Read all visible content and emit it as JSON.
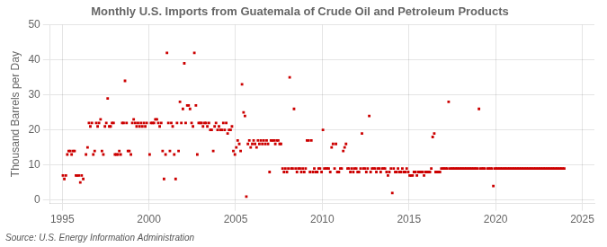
{
  "chart_data": {
    "type": "scatter",
    "title": "Monthly U.S. Imports from Guatemala of Crude Oil and Petroleum Products",
    "ylabel": "Thousand Barrels per Day",
    "annotations": [
      "Source: U.S. Energy Information Administration"
    ],
    "color": "#CC0000",
    "marker": "square",
    "grid": true,
    "xlim": [
      1994.3,
      2025.7
    ],
    "ylim": [
      -1,
      50
    ],
    "xticks": [
      1995,
      2000,
      2005,
      2010,
      2015,
      2020,
      2025
    ],
    "yticks": [
      0,
      10,
      20,
      30,
      40,
      50
    ],
    "x": [
      1995.04,
      1995.12,
      1995.21,
      1995.29,
      1995.37,
      1995.46,
      1995.54,
      1995.62,
      1995.71,
      1995.79,
      1995.87,
      1995.96,
      1996.04,
      1996.12,
      1996.21,
      1996.37,
      1996.46,
      1996.54,
      1996.62,
      1996.71,
      1996.79,
      1996.87,
      1996.96,
      1997.04,
      1997.12,
      1997.21,
      1997.29,
      1997.37,
      1997.46,
      1997.54,
      1997.62,
      1997.71,
      1997.79,
      1997.87,
      1997.96,
      1998.04,
      1998.12,
      1998.21,
      1998.29,
      1998.37,
      1998.46,
      1998.54,
      1998.62,
      1998.71,
      1998.79,
      1998.87,
      1998.96,
      1999.04,
      1999.12,
      1999.21,
      1999.29,
      1999.37,
      1999.46,
      1999.54,
      1999.62,
      1999.71,
      1999.79,
      1999.87,
      2000.04,
      2000.12,
      2000.21,
      2000.29,
      2000.37,
      2000.46,
      2000.54,
      2000.62,
      2000.71,
      2000.79,
      2000.87,
      2000.96,
      2001.04,
      2001.12,
      2001.21,
      2001.29,
      2001.37,
      2001.46,
      2001.54,
      2001.62,
      2001.71,
      2001.79,
      2001.87,
      2001.96,
      2002.04,
      2002.12,
      2002.21,
      2002.29,
      2002.37,
      2002.46,
      2002.54,
      2002.62,
      2002.71,
      2002.79,
      2002.87,
      2002.96,
      2003.04,
      2003.12,
      2003.21,
      2003.29,
      2003.37,
      2003.46,
      2003.54,
      2003.62,
      2003.71,
      2003.79,
      2003.87,
      2003.96,
      2004.04,
      2004.12,
      2004.21,
      2004.29,
      2004.37,
      2004.46,
      2004.54,
      2004.62,
      2004.71,
      2004.79,
      2004.87,
      2004.96,
      2005.04,
      2005.12,
      2005.21,
      2005.29,
      2005.37,
      2005.46,
      2005.54,
      2005.62,
      2005.71,
      2005.79,
      2005.87,
      2005.96,
      2006.04,
      2006.12,
      2006.21,
      2006.29,
      2006.37,
      2006.46,
      2006.54,
      2006.62,
      2006.71,
      2006.79,
      2006.87,
      2006.96,
      2007.04,
      2007.12,
      2007.21,
      2007.29,
      2007.37,
      2007.46,
      2007.54,
      2007.62,
      2007.71,
      2007.79,
      2007.87,
      2007.96,
      2008.04,
      2008.12,
      2008.21,
      2008.29,
      2008.37,
      2008.46,
      2008.54,
      2008.62,
      2008.71,
      2008.79,
      2008.87,
      2008.96,
      2009.04,
      2009.12,
      2009.21,
      2009.29,
      2009.37,
      2009.46,
      2009.54,
      2009.62,
      2009.71,
      2009.79,
      2009.87,
      2009.96,
      2010.04,
      2010.12,
      2010.21,
      2010.29,
      2010.37,
      2010.46,
      2010.54,
      2010.62,
      2010.71,
      2010.79,
      2010.87,
      2010.96,
      2011.04,
      2011.12,
      2011.21,
      2011.29,
      2011.37,
      2011.46,
      2011.54,
      2011.62,
      2011.71,
      2011.79,
      2011.87,
      2011.96,
      2012.04,
      2012.12,
      2012.21,
      2012.29,
      2012.37,
      2012.46,
      2012.54,
      2012.62,
      2012.71,
      2012.79,
      2012.87,
      2012.96,
      2013.04,
      2013.12,
      2013.21,
      2013.29,
      2013.37,
      2013.46,
      2013.54,
      2013.62,
      2013.71,
      2013.79,
      2013.87,
      2013.96,
      2014.04,
      2014.12,
      2014.21,
      2014.29,
      2014.37,
      2014.46,
      2014.54,
      2014.62,
      2014.71,
      2014.79,
      2014.87,
      2014.96,
      2015.04,
      2015.12,
      2015.21,
      2015.29,
      2015.37,
      2015.46,
      2015.54,
      2015.62,
      2015.71,
      2015.79,
      2015.87,
      2015.96,
      2016.04,
      2016.12,
      2016.21,
      2016.29,
      2016.37,
      2016.46,
      2016.54,
      2016.62,
      2016.71,
      2016.79,
      2016.87,
      2016.96,
      2017.04,
      2017.12,
      2017.21,
      2017.29,
      2017.37,
      2017.46,
      2017.54,
      2017.62,
      2017.71,
      2017.79,
      2017.87,
      2017.96,
      2018.04,
      2018.12,
      2018.21,
      2018.29,
      2018.37,
      2018.46,
      2018.54,
      2018.62,
      2018.71,
      2018.79,
      2018.87,
      2018.96,
      2019.04,
      2019.12,
      2019.21,
      2019.29,
      2019.37,
      2019.54,
      2019.62,
      2019.71,
      2019.79,
      2019.87,
      2019.96,
      2020.04,
      2020.12,
      2020.21,
      2020.29,
      2020.37,
      2020.46,
      2020.54,
      2020.62,
      2020.71,
      2020.79,
      2020.87,
      2020.96,
      2021.04,
      2021.12,
      2021.21,
      2021.29,
      2021.37,
      2021.46,
      2021.54,
      2021.62,
      2021.71,
      2021.79,
      2021.87,
      2021.96,
      2022.04,
      2022.12,
      2022.21,
      2022.29,
      2022.37,
      2022.46,
      2022.54,
      2022.62,
      2022.71,
      2022.79,
      2022.87,
      2022.96,
      2023.04,
      2023.12,
      2023.21,
      2023.29,
      2023.37,
      2023.46,
      2023.54,
      2023.62,
      2023.71,
      2023.79,
      2023.87,
      2023.96
    ],
    "values": [
      7,
      6,
      7,
      13,
      14,
      14,
      13,
      14,
      14,
      7,
      7,
      7,
      5,
      7,
      6,
      13,
      15,
      22,
      21,
      22,
      13,
      14,
      22,
      21,
      22,
      23,
      14,
      13,
      21,
      22,
      29,
      21,
      21,
      22,
      22,
      13,
      13,
      13,
      14,
      13,
      22,
      22,
      34,
      22,
      14,
      14,
      13,
      22,
      23,
      22,
      21,
      22,
      21,
      22,
      21,
      22,
      21,
      22,
      13,
      22,
      22,
      22,
      23,
      23,
      22,
      21,
      22,
      14,
      6,
      13,
      42,
      22,
      14,
      22,
      21,
      13,
      6,
      22,
      14,
      28,
      22,
      26,
      39,
      22,
      27,
      27,
      26,
      22,
      21,
      42,
      27,
      13,
      22,
      22,
      22,
      21,
      22,
      22,
      21,
      22,
      20,
      20,
      14,
      21,
      22,
      20,
      21,
      20,
      20,
      22,
      20,
      22,
      19,
      20,
      20,
      21,
      14,
      13,
      15,
      17,
      16,
      14,
      33,
      25,
      24,
      1,
      16,
      17,
      15,
      16,
      17,
      16,
      15,
      17,
      16,
      17,
      16,
      17,
      16,
      17,
      16,
      8,
      17,
      17,
      17,
      16,
      17,
      17,
      16,
      16,
      9,
      8,
      9,
      8,
      9,
      35,
      9,
      9,
      26,
      9,
      8,
      9,
      9,
      8,
      9,
      8,
      9,
      17,
      17,
      8,
      17,
      8,
      9,
      8,
      8,
      9,
      9,
      8,
      20,
      9,
      9,
      9,
      9,
      8,
      15,
      16,
      9,
      16,
      8,
      8,
      9,
      9,
      14,
      15,
      16,
      9,
      9,
      8,
      9,
      8,
      9,
      9,
      8,
      8,
      9,
      19,
      9,
      9,
      8,
      9,
      24,
      8,
      9,
      9,
      9,
      8,
      9,
      9,
      8,
      9,
      9,
      9,
      8,
      7,
      8,
      9,
      2,
      9,
      8,
      8,
      9,
      8,
      8,
      9,
      8,
      8,
      9,
      8,
      7,
      7,
      7,
      8,
      8,
      7,
      8,
      8,
      8,
      8,
      7,
      8,
      8,
      8,
      8,
      9,
      18,
      19,
      8,
      8,
      8,
      8,
      9,
      9,
      9,
      9,
      9,
      28,
      9,
      9,
      9,
      9,
      9,
      9,
      9,
      9,
      9,
      9,
      9,
      9,
      9,
      9,
      9,
      9,
      9,
      9,
      9,
      9,
      26,
      9,
      9,
      9,
      9,
      9,
      9,
      9,
      9,
      4,
      9,
      9,
      9,
      9,
      9,
      9,
      9,
      9,
      9,
      9,
      9,
      9,
      9,
      9,
      9,
      9,
      9,
      9,
      9,
      9,
      9,
      9,
      9,
      9,
      9,
      9,
      9,
      9,
      9,
      9,
      9,
      9,
      9,
      9,
      9,
      9,
      9,
      9,
      9,
      9,
      9,
      9,
      9,
      9,
      9,
      9,
      9,
      9,
      9
    ]
  }
}
